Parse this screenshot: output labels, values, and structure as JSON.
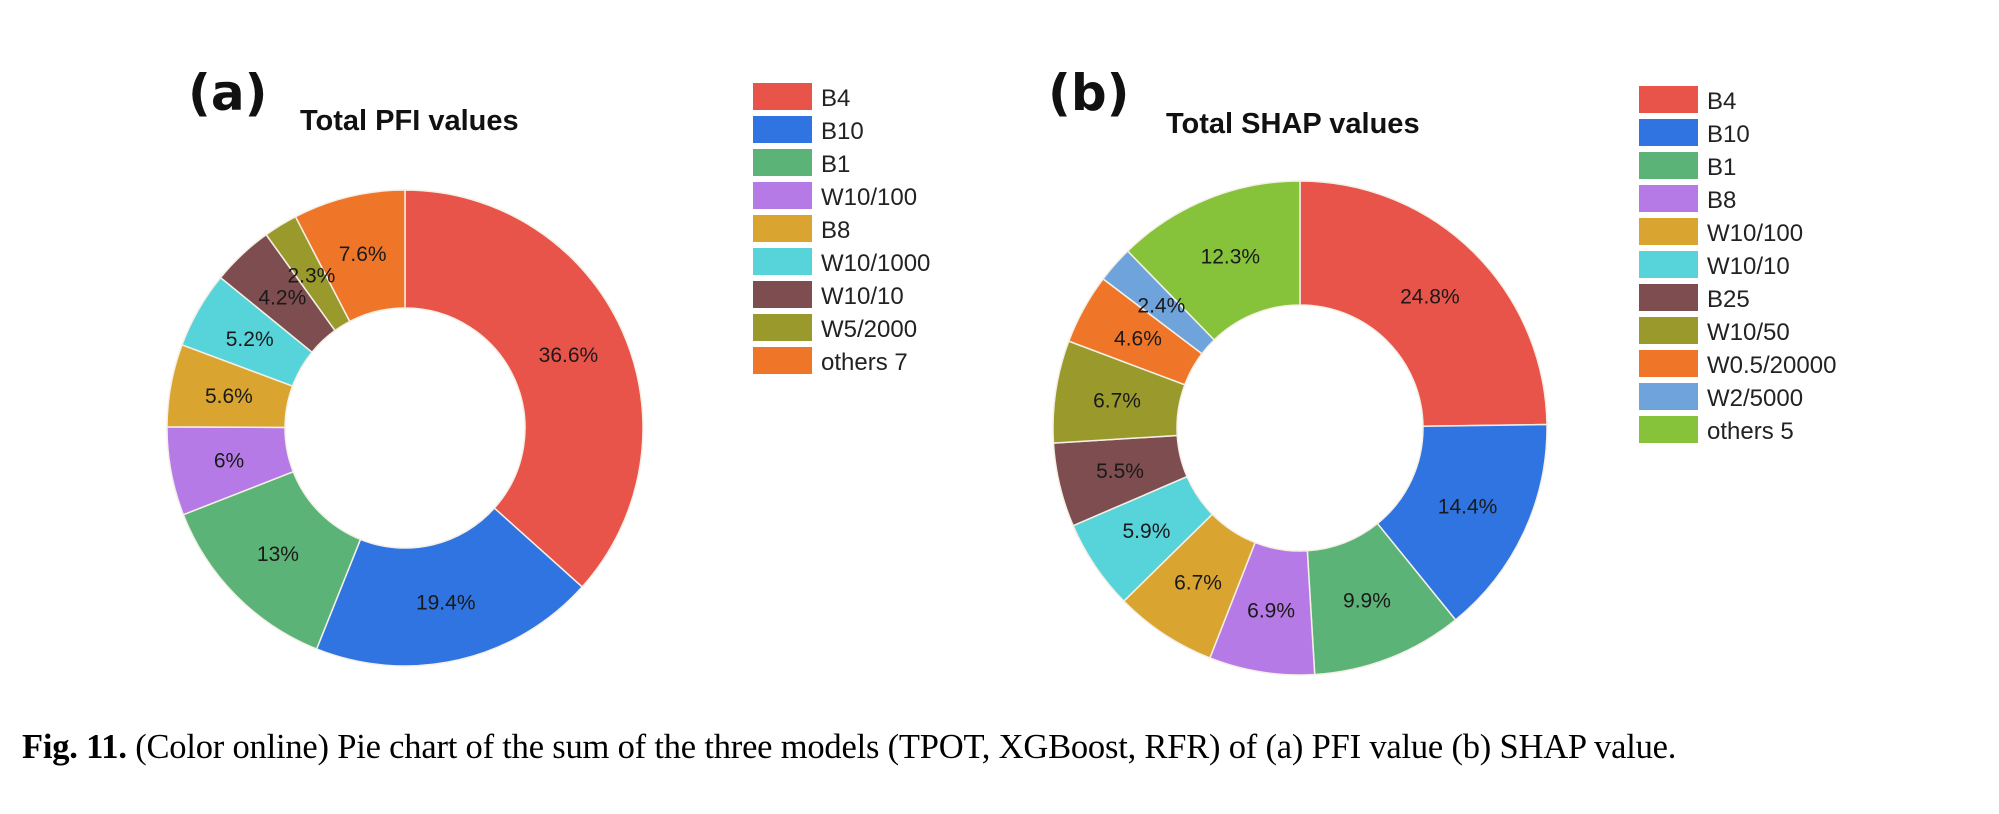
{
  "chart_data": [
    {
      "type": "pie",
      "variant": "donut",
      "panel_label": "(a)",
      "title": "Total PFI values",
      "start": "top",
      "direction": "clockwise",
      "legend_position": "top-right",
      "slices": [
        {
          "label": "B4",
          "value": 36.6,
          "display": "36.6%",
          "color": "#e8534a"
        },
        {
          "label": "B10",
          "value": 19.4,
          "display": "19.4%",
          "color": "#2f74e0"
        },
        {
          "label": "B1",
          "value": 13,
          "display": "13%",
          "color": "#5bb377"
        },
        {
          "label": "W10/100",
          "value": 6,
          "display": "6%",
          "color": "#b57ae6"
        },
        {
          "label": "B8",
          "value": 5.6,
          "display": "5.6%",
          "color": "#d9a530"
        },
        {
          "label": "W10/1000",
          "value": 5.2,
          "display": "5.2%",
          "color": "#56d4d9"
        },
        {
          "label": "W10/10",
          "value": 4.2,
          "display": "4.2%",
          "color": "#7d4d4f"
        },
        {
          "label": "W5/2000",
          "value": 2.3,
          "display": "2.3%",
          "color": "#9a9a2c"
        },
        {
          "label": "others 7",
          "value": 7.6,
          "display": "7.6%",
          "color": "#ef7629"
        }
      ]
    },
    {
      "type": "pie",
      "variant": "donut",
      "panel_label": "(b)",
      "title": "Total SHAP values",
      "start": "top",
      "direction": "clockwise",
      "legend_position": "top-right",
      "slices": [
        {
          "label": "B4",
          "value": 24.8,
          "display": "24.8%",
          "color": "#e8534a"
        },
        {
          "label": "B10",
          "value": 14.4,
          "display": "14.4%",
          "color": "#2f74e0"
        },
        {
          "label": "B1",
          "value": 9.9,
          "display": "9.9%",
          "color": "#5bb377"
        },
        {
          "label": "B8",
          "value": 6.9,
          "display": "6.9%",
          "color": "#b57ae6"
        },
        {
          "label": "W10/100",
          "value": 6.7,
          "display": "6.7%",
          "color": "#d9a530"
        },
        {
          "label": "W10/10",
          "value": 5.9,
          "display": "5.9%",
          "color": "#56d4d9"
        },
        {
          "label": "B25",
          "value": 5.5,
          "display": "5.5%",
          "color": "#7d4d4f"
        },
        {
          "label": "W10/50",
          "value": 6.7,
          "display": "6.7%",
          "color": "#9a9a2c"
        },
        {
          "label": "W0.5/20000",
          "value": 4.6,
          "display": "4.6%",
          "color": "#ef7629"
        },
        {
          "label": "W2/5000",
          "value": 2.4,
          "display": "2.4%",
          "color": "#6ea3dc"
        },
        {
          "label": "others 5",
          "value": 12.3,
          "display": "12.3%",
          "color": "#86c23a"
        }
      ]
    }
  ],
  "caption": {
    "figure_label": "Fig. 11.",
    "text": " (Color online) Pie chart of the sum of the three models (TPOT, XGBoost, RFR) of (a) PFI value (b) SHAP value."
  }
}
